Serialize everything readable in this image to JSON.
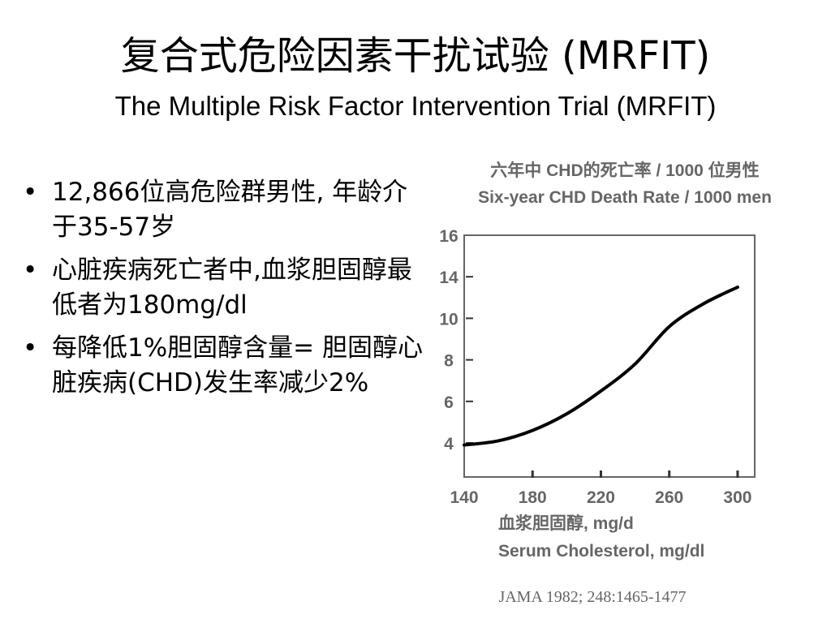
{
  "slide": {
    "title_zh": "复合式危险因素干扰试验 (MRFIT)",
    "title_en": "The Multiple Risk Factor Intervention Trial (MRFIT)",
    "bullets": [
      "12,866位高危险群男性, 年龄介于35-57岁",
      "心脏疾病死亡者中,血浆胆固醇最低者为180mg/dl",
      "每降低1%胆固醇含量= 胆固醇心脏疾病(CHD)发生率减少2%"
    ],
    "source": "JAMA 1982; 248:1465-1477"
  },
  "chart_data": {
    "type": "line",
    "title_zh": "六年中 CHD的死亡率 / 1000 位男性",
    "title_en": "Six-year CHD Death Rate / 1000 men",
    "xlabel_zh": "血浆胆固醇, mg/d",
    "xlabel_en": "Serum Cholesterol, mg/dl",
    "x_ticks": [
      "140",
      "180",
      "220",
      "260",
      "300"
    ],
    "y_ticks": [
      "4",
      "6",
      "8",
      "10",
      "14",
      "16"
    ],
    "xlim": [
      140,
      310
    ],
    "series": [
      {
        "x": [
          140,
          160,
          180,
          200,
          220,
          240,
          260,
          280,
          300
        ],
        "y": [
          3.9,
          4.1,
          4.6,
          5.4,
          6.5,
          7.8,
          9.6,
          11.4,
          13.0
        ]
      }
    ],
    "line_color": "#000000",
    "axis_color": "#666666"
  }
}
